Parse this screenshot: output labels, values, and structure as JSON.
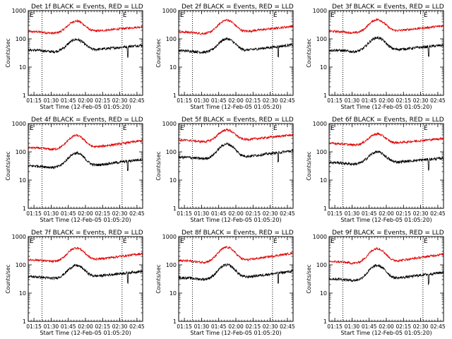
{
  "colors": {
    "events": "#000000",
    "lld": "#e00000",
    "axis": "#000000"
  },
  "chart_data": {
    "type": "line",
    "rows": 3,
    "cols": 3,
    "ylabel": "Counts/sec",
    "xlabel": "Start Time (12-Feb-05 01:05:20)",
    "yscale": "log",
    "ylim": [
      1,
      1000
    ],
    "yticks": [
      1,
      10,
      100,
      1000
    ],
    "ytick_labels": [
      "1",
      "10",
      "100",
      "1000"
    ],
    "xlim_minutes": [
      5,
      105
    ],
    "xticks_minutes": [
      10,
      25,
      40,
      55,
      70,
      85,
      100
    ],
    "xtick_labels": [
      "01:15",
      "01:30",
      "01:45",
      "02:00",
      "02:15",
      "02:30",
      "02:45"
    ],
    "vlines_minutes": [
      17,
      87
    ],
    "corner_marks": [
      "E",
      "E"
    ],
    "panels": [
      {
        "title": "Det 1f BLACK = Events, RED = LLD",
        "events_base": 40,
        "lld_base": 180,
        "events_peak": 95,
        "lld_peak": 430,
        "events_end": 60,
        "lld_end": 270
      },
      {
        "title": "Det 2f BLACK = Events, RED = LLD",
        "events_base": 38,
        "lld_base": 175,
        "events_peak": 100,
        "lld_peak": 460,
        "events_end": 62,
        "lld_end": 280
      },
      {
        "title": "Det 3f BLACK = Events, RED = LLD",
        "events_base": 40,
        "lld_base": 185,
        "events_peak": 110,
        "lld_peak": 480,
        "events_end": 60,
        "lld_end": 290
      },
      {
        "title": "Det 4f BLACK = Events, RED = LLD",
        "events_base": 32,
        "lld_base": 140,
        "events_peak": 90,
        "lld_peak": 380,
        "events_end": 55,
        "lld_end": 250
      },
      {
        "title": "Det 5f BLACK = Events, RED = LLD",
        "events_base": 65,
        "lld_base": 260,
        "events_peak": 190,
        "lld_peak": 600,
        "events_end": 110,
        "lld_end": 400
      },
      {
        "title": "Det 6f BLACK = Events, RED = LLD",
        "events_base": 42,
        "lld_base": 200,
        "events_peak": 100,
        "lld_peak": 430,
        "events_end": 60,
        "lld_end": 300
      },
      {
        "title": "Det 7f BLACK = Events, RED = LLD",
        "events_base": 38,
        "lld_base": 150,
        "events_peak": 95,
        "lld_peak": 400,
        "events_end": 60,
        "lld_end": 250
      },
      {
        "title": "Det 8f BLACK = Events, RED = LLD",
        "events_base": 35,
        "lld_base": 140,
        "events_peak": 100,
        "lld_peak": 420,
        "events_end": 60,
        "lld_end": 260
      },
      {
        "title": "Det 9f BLACK = Events, RED = LLD",
        "events_base": 32,
        "lld_base": 130,
        "events_peak": 95,
        "lld_peak": 380,
        "events_end": 55,
        "lld_end": 240
      }
    ]
  }
}
